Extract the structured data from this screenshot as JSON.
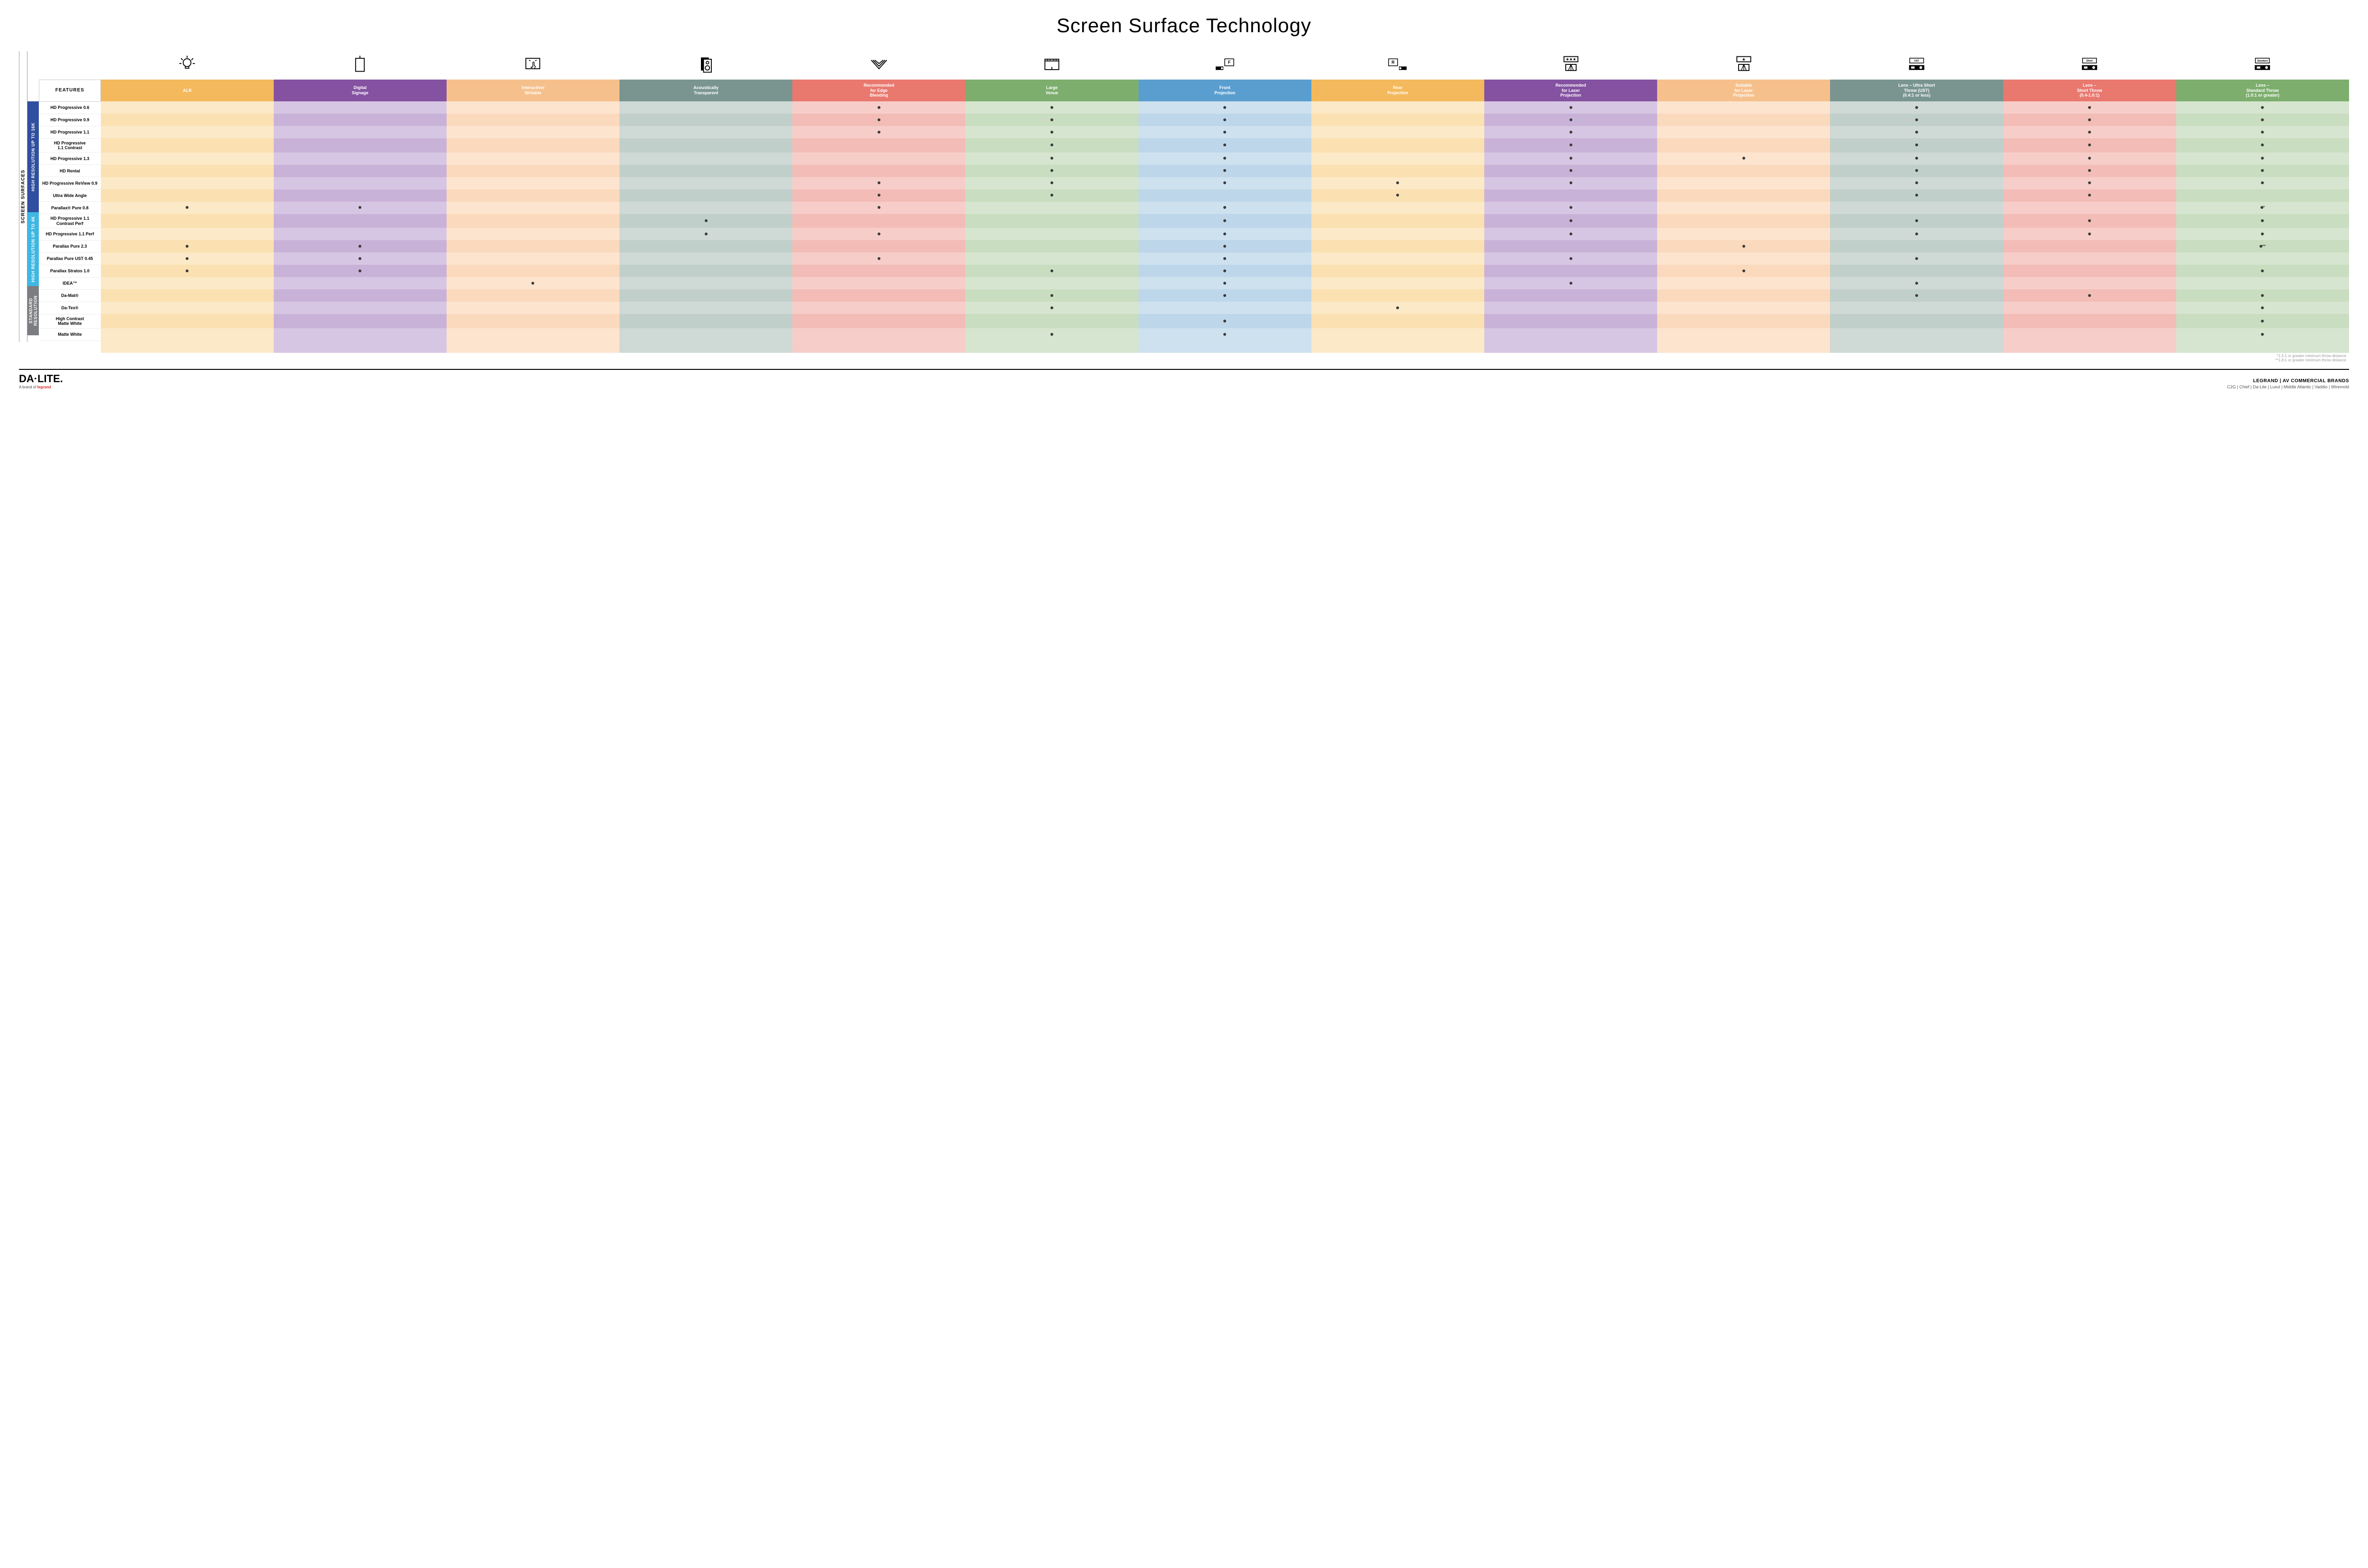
{
  "title": "Screen Surface Technology",
  "title_fontsize": 42,
  "outer_label": "SCREEN SURFACES",
  "features_header": "FEATURES",
  "columns": [
    {
      "key": "alr",
      "label": "ALR",
      "color": "#f3b95c",
      "icon": "bulb"
    },
    {
      "key": "ds",
      "label": "Digital\nSignage",
      "color": "#8452a1",
      "icon": "monitor"
    },
    {
      "key": "iw",
      "label": "Interactive/\nWritable",
      "color": "#f6c08c",
      "icon": "touch"
    },
    {
      "key": "at",
      "label": "Acoustically\nTransparent",
      "color": "#7a9590",
      "icon": "speaker"
    },
    {
      "key": "edge",
      "label": "Recommended\nfor Edge\nBlending",
      "color": "#e9786f",
      "icon": "arc"
    },
    {
      "key": "large",
      "label": "Large\nVenue",
      "color": "#7dae6e",
      "icon": "venue"
    },
    {
      "key": "front",
      "label": "Front\nProjection",
      "color": "#5a9ed0",
      "icon": "front"
    },
    {
      "key": "rear",
      "label": "Rear\nProjection",
      "color": "#f3b95c",
      "icon": "rear"
    },
    {
      "key": "rlaser",
      "label": "Recommended\nfor Laser\nProjection",
      "color": "#8452a1",
      "icon": "laser3"
    },
    {
      "key": "slaser",
      "label": "Suitable\nfor Laser\nProjection",
      "color": "#f6c08c",
      "icon": "laser1"
    },
    {
      "key": "ust",
      "label": "Lens – Ultra Short\nThrow (UST)\n(0.4:1 or less)",
      "color": "#7a9590",
      "icon": "proj",
      "icon_text": "UST"
    },
    {
      "key": "short",
      "label": "Lens –\nShort Throw\n(0.4-1.0:1)",
      "color": "#e9786f",
      "icon": "proj",
      "icon_text": "Short"
    },
    {
      "key": "std",
      "label": "Lens –\nStandard Throw\n(1.0:1 or greater)",
      "color": "#7dae6e",
      "icon": "proj",
      "icon_text": "Standard"
    }
  ],
  "column_tints": {
    "alr": [
      "#fce9c7",
      "#fbe0b1"
    ],
    "ds": [
      "#d7c6e3",
      "#c9b2d8"
    ],
    "iw": [
      "#fde4cf",
      "#fbd9bc"
    ],
    "at": [
      "#cfd9d6",
      "#c1cfcb"
    ],
    "edge": [
      "#f7cdc9",
      "#f3bcb6"
    ],
    "large": [
      "#d6e5cf",
      "#c9ddc0"
    ],
    "front": [
      "#cde1ef",
      "#bdd6ea"
    ],
    "rear": [
      "#fce9c7",
      "#fbe0b1"
    ],
    "rlaser": [
      "#d7c6e3",
      "#c9b2d8"
    ],
    "slaser": [
      "#fde4cf",
      "#fbd9bc"
    ],
    "ust": [
      "#cfd9d6",
      "#c1cfcb"
    ],
    "short": [
      "#f7cdc9",
      "#f3bcb6"
    ],
    "std": [
      "#d6e5cf",
      "#c9ddc0"
    ]
  },
  "groups": [
    {
      "label": "HIGH RESOLUTION UP TO 16K",
      "color": "#2f4fa0",
      "rows": [
        "HD Progressive 0.6",
        "HD Progressive 0.9",
        "HD Progressive 1.1",
        "HD Progressive\n1.1 Contrast",
        "HD Progressive 1.3",
        "HD Rental",
        "HD Progressive ReView 0.9",
        "Ultra Wide Angle",
        "Parallax® Pure 0.8"
      ]
    },
    {
      "label": "HIGH RESOLUTION UP TO 4K",
      "color": "#3fb7e4",
      "rows": [
        "HD Progressive 1.1\nContrast Perf",
        "HD Progressive 1.1 Perf",
        "Parallax Pure 2.3",
        "Parallax Pure UST 0.45",
        "Parallax Stratos 1.0",
        "IDEA™"
      ]
    },
    {
      "label": "STANDARD\nRESOLUTION",
      "color": "#7b7d80",
      "rows": [
        "Da-Mat®",
        "Da-Tex®",
        "High Contrast\nMatte White",
        "Matte White"
      ]
    }
  ],
  "dots": {
    "HD Progressive 0.6": {
      "edge": "•",
      "large": "•",
      "front": "•",
      "rlaser": "•",
      "ust": "•",
      "short": "•",
      "std": "•"
    },
    "HD Progressive 0.9": {
      "edge": "•",
      "large": "•",
      "front": "•",
      "rlaser": "•",
      "ust": "•",
      "short": "•",
      "std": "•"
    },
    "HD Progressive 1.1": {
      "edge": "•",
      "large": "•",
      "front": "•",
      "rlaser": "•",
      "ust": "•",
      "short": "•",
      "std": "•"
    },
    "HD Progressive\n1.1 Contrast": {
      "large": "•",
      "front": "•",
      "rlaser": "•",
      "ust": "•",
      "short": "•",
      "std": "•"
    },
    "HD Progressive 1.3": {
      "large": "•",
      "front": "•",
      "rlaser": "•",
      "slaser": "•",
      "ust": "•",
      "short": "•",
      "std": "•"
    },
    "HD Rental": {
      "large": "•",
      "front": "•",
      "rlaser": "•",
      "ust": "•",
      "short": "•",
      "std": "•"
    },
    "HD Progressive ReView 0.9": {
      "edge": "•",
      "large": "•",
      "front": "•",
      "rear": "•",
      "rlaser": "•",
      "ust": "•",
      "short": "•",
      "std": "•"
    },
    "Ultra Wide Angle": {
      "edge": "•",
      "large": "•",
      "rear": "•",
      "ust": "•",
      "short": "•"
    },
    "Parallax® Pure 0.8": {
      "alr": "•",
      "ds": "•",
      "edge": "•",
      "front": "•",
      "rlaser": "•",
      "std": "•*"
    },
    "HD Progressive 1.1\nContrast Perf": {
      "at": "•",
      "front": "•",
      "rlaser": "•",
      "ust": "•",
      "short": "•",
      "std": "•"
    },
    "HD Progressive 1.1 Perf": {
      "at": "•",
      "edge": "•",
      "front": "•",
      "rlaser": "•",
      "ust": "•",
      "short": "•",
      "std": "•"
    },
    "Parallax Pure 2.3": {
      "alr": "•",
      "ds": "•",
      "front": "•",
      "slaser": "•",
      "std": "•**"
    },
    "Parallax Pure UST 0.45": {
      "alr": "•",
      "ds": "•",
      "edge": "•",
      "front": "•",
      "rlaser": "•",
      "ust": "•"
    },
    "Parallax Stratos 1.0": {
      "alr": "•",
      "ds": "•",
      "large": "•",
      "front": "•",
      "slaser": "•",
      "std": "•"
    },
    "IDEA™": {
      "iw": "•",
      "front": "•",
      "rlaser": "•",
      "ust": "•"
    },
    "Da-Mat®": {
      "large": "•",
      "front": "•",
      "ust": "•",
      "short": "•",
      "std": "•"
    },
    "Da-Tex®": {
      "large": "•",
      "rear": "•",
      "std": "•"
    },
    "High Contrast\nMatte White": {
      "front": "•",
      "std": "•"
    },
    "Matte White": {
      "large": "•",
      "front": "•",
      "std": "•"
    }
  },
  "footnotes": [
    "*1.5:1 or greater minimum throw distance",
    "**1.8:1 or greater minimum throw distance"
  ],
  "footer": {
    "logo_main": "DA·LITE.",
    "logo_sub_prefix": "A brand of ",
    "logo_sub_brand": "legrand",
    "right_line1": "LEGRAND | AV COMMERCIAL BRANDS",
    "right_line2": "C2G  |  Chief  |  Da-Lite  |  Luxul  |  Middle Atlantic  |  Vaddio  |  Wiremold"
  }
}
